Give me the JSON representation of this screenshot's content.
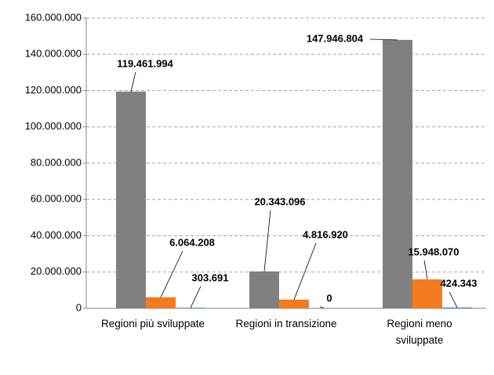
{
  "chart_data": {
    "type": "bar",
    "categories": [
      "Regioni più sviluppate",
      "Regioni in transizione",
      "Regioni meno sviluppate"
    ],
    "series": [
      {
        "color": "#808080",
        "values": [
          119461994,
          20343096,
          147946804
        ],
        "value_labels": [
          "119.461.994",
          "20.343.096",
          "147.946.804"
        ]
      },
      {
        "color": "#f47b20",
        "values": [
          6064208,
          4816920,
          15948070
        ],
        "value_labels": [
          "6.064.208",
          "4.816.920",
          "15.948.070"
        ]
      },
      {
        "color": "#4472c4",
        "values": [
          303691,
          0,
          424343
        ],
        "value_labels": [
          "303.691",
          "0",
          "424.343"
        ]
      }
    ],
    "ylim": [
      0,
      160000000
    ],
    "yticks": [
      {
        "value": 0,
        "label": "0"
      },
      {
        "value": 20000000,
        "label": "20.000.000"
      },
      {
        "value": 40000000,
        "label": "40.000.000"
      },
      {
        "value": 60000000,
        "label": "60.000.000"
      },
      {
        "value": 80000000,
        "label": "80.000.000"
      },
      {
        "value": 100000000,
        "label": "100.000.000"
      },
      {
        "value": 120000000,
        "label": "120.000.000"
      },
      {
        "value": 140000000,
        "label": "140.000.000"
      },
      {
        "value": 160000000,
        "label": "160.000.000"
      }
    ],
    "grid": true
  }
}
